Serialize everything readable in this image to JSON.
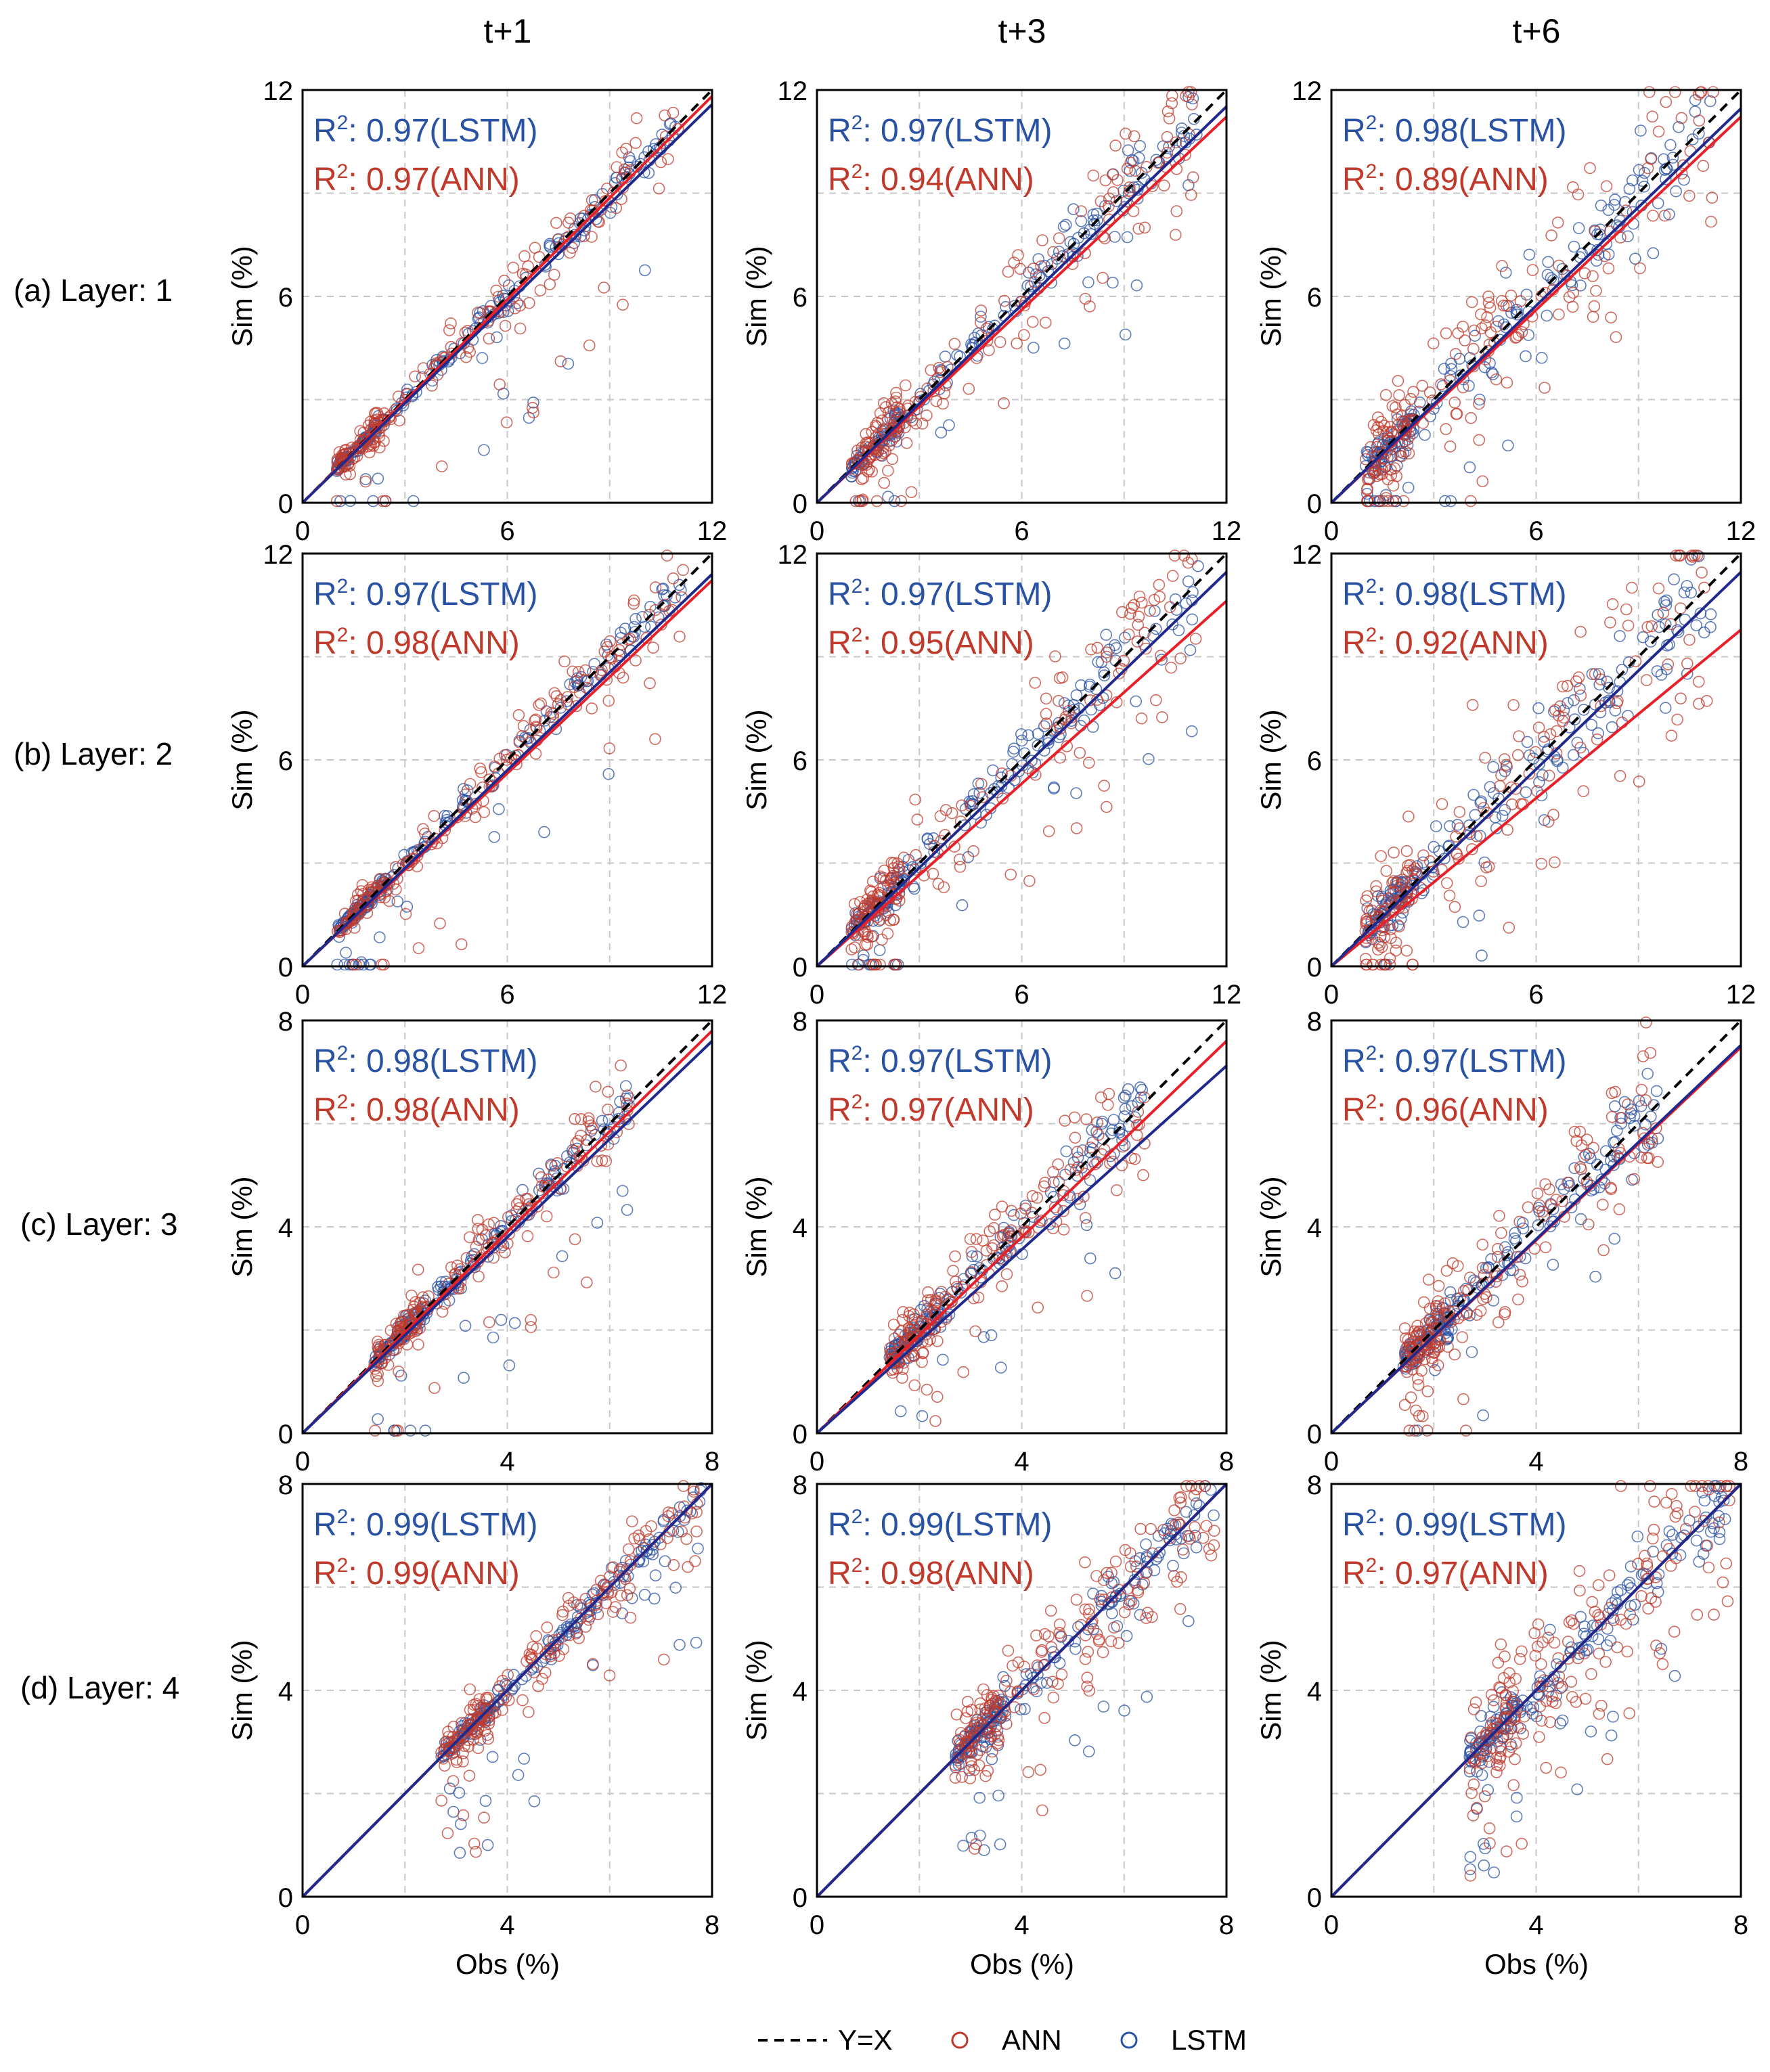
{
  "figure": {
    "columns": [
      "t+1",
      "t+3",
      "t+6"
    ],
    "rows": [
      "(a) Layer: 1",
      "(b) Layer: 2",
      "(c) Layer: 3",
      "(d) Layer: 4"
    ],
    "xlabel": "Obs (%)",
    "ylabel": "Sim (%)",
    "legend": {
      "line": "Y=X",
      "ann": "ANN",
      "lstm": "LSTM"
    },
    "colors": {
      "ann": "#c0392b",
      "lstm": "#2952a3",
      "ann_fit": "#e8202a",
      "lstm_fit": "#1f2a8c",
      "identity": "#000000"
    }
  },
  "chart_data": [
    {
      "type": "scatter",
      "row": "(a) Layer: 1",
      "column": "t+1",
      "xlim": [
        0,
        12
      ],
      "ylim": [
        0,
        12
      ],
      "ticks": [
        0,
        6,
        12
      ],
      "series": [
        {
          "name": "LSTM",
          "r2": "0.97",
          "fit_slope": 0.965
        },
        {
          "name": "ANN",
          "r2": "0.97",
          "fit_slope": 0.985
        }
      ],
      "identity": "Y=X"
    },
    {
      "type": "scatter",
      "row": "(a) Layer: 1",
      "column": "t+3",
      "xlim": [
        0,
        12
      ],
      "ylim": [
        0,
        12
      ],
      "ticks": [
        0,
        6,
        12
      ],
      "series": [
        {
          "name": "LSTM",
          "r2": "0.97",
          "fit_slope": 0.96
        },
        {
          "name": "ANN",
          "r2": "0.94",
          "fit_slope": 0.935
        }
      ],
      "identity": "Y=X"
    },
    {
      "type": "scatter",
      "row": "(a) Layer: 1",
      "column": "t+6",
      "xlim": [
        0,
        12
      ],
      "ylim": [
        0,
        12
      ],
      "ticks": [
        0,
        6,
        12
      ],
      "series": [
        {
          "name": "LSTM",
          "r2": "0.98",
          "fit_slope": 0.955
        },
        {
          "name": "ANN",
          "r2": "0.89",
          "fit_slope": 0.935
        }
      ],
      "identity": "Y=X"
    },
    {
      "type": "scatter",
      "row": "(b) Layer: 2",
      "column": "t+1",
      "xlim": [
        0,
        12
      ],
      "ylim": [
        0,
        12
      ],
      "ticks": [
        0,
        6,
        12
      ],
      "series": [
        {
          "name": "LSTM",
          "r2": "0.97",
          "fit_slope": 0.95
        },
        {
          "name": "ANN",
          "r2": "0.98",
          "fit_slope": 0.935
        }
      ],
      "identity": "Y=X"
    },
    {
      "type": "scatter",
      "row": "(b) Layer: 2",
      "column": "t+3",
      "xlim": [
        0,
        12
      ],
      "ylim": [
        0,
        12
      ],
      "ticks": [
        0,
        6,
        12
      ],
      "series": [
        {
          "name": "LSTM",
          "r2": "0.97",
          "fit_slope": 0.955
        },
        {
          "name": "ANN",
          "r2": "0.95",
          "fit_slope": 0.885
        }
      ],
      "identity": "Y=X"
    },
    {
      "type": "scatter",
      "row": "(b) Layer: 2",
      "column": "t+6",
      "xlim": [
        0,
        12
      ],
      "ylim": [
        0,
        12
      ],
      "ticks": [
        0,
        6,
        12
      ],
      "series": [
        {
          "name": "LSTM",
          "r2": "0.98",
          "fit_slope": 0.955
        },
        {
          "name": "ANN",
          "r2": "0.92",
          "fit_slope": 0.815
        }
      ],
      "identity": "Y=X"
    },
    {
      "type": "scatter",
      "row": "(c) Layer: 3",
      "column": "t+1",
      "xlim": [
        0,
        8
      ],
      "ylim": [
        0,
        8
      ],
      "ticks": [
        0,
        4,
        8
      ],
      "series": [
        {
          "name": "LSTM",
          "r2": "0.98",
          "fit_slope": 0.95
        },
        {
          "name": "ANN",
          "r2": "0.98",
          "fit_slope": 0.975
        }
      ],
      "identity": "Y=X"
    },
    {
      "type": "scatter",
      "row": "(c) Layer: 3",
      "column": "t+3",
      "xlim": [
        0,
        8
      ],
      "ylim": [
        0,
        8
      ],
      "ticks": [
        0,
        4,
        8
      ],
      "series": [
        {
          "name": "LSTM",
          "r2": "0.97",
          "fit_slope": 0.89
        },
        {
          "name": "ANN",
          "r2": "0.97",
          "fit_slope": 0.95
        }
      ],
      "identity": "Y=X"
    },
    {
      "type": "scatter",
      "row": "(c) Layer: 3",
      "column": "t+6",
      "xlim": [
        0,
        8
      ],
      "ylim": [
        0,
        8
      ],
      "ticks": [
        0,
        4,
        8
      ],
      "series": [
        {
          "name": "LSTM",
          "r2": "0.97",
          "fit_slope": 0.94
        },
        {
          "name": "ANN",
          "r2": "0.96",
          "fit_slope": 0.935
        }
      ],
      "identity": "Y=X"
    },
    {
      "type": "scatter",
      "row": "(d) Layer: 4",
      "column": "t+1",
      "xlim": [
        0,
        8
      ],
      "ylim": [
        0,
        8
      ],
      "ticks": [
        0,
        4,
        8
      ],
      "series": [
        {
          "name": "LSTM",
          "r2": "0.99",
          "fit_slope": 1.0
        },
        {
          "name": "ANN",
          "r2": "0.99",
          "fit_slope": 1.0
        }
      ],
      "identity": "Y=X"
    },
    {
      "type": "scatter",
      "row": "(d) Layer: 4",
      "column": "t+3",
      "xlim": [
        0,
        8
      ],
      "ylim": [
        0,
        8
      ],
      "ticks": [
        0,
        4,
        8
      ],
      "series": [
        {
          "name": "LSTM",
          "r2": "0.99",
          "fit_slope": 1.0
        },
        {
          "name": "ANN",
          "r2": "0.98",
          "fit_slope": 1.0
        }
      ],
      "identity": "Y=X"
    },
    {
      "type": "scatter",
      "row": "(d) Layer: 4",
      "column": "t+6",
      "xlim": [
        0,
        8
      ],
      "ylim": [
        0,
        8
      ],
      "ticks": [
        0,
        4,
        8
      ],
      "series": [
        {
          "name": "LSTM",
          "r2": "0.99",
          "fit_slope": 1.0
        },
        {
          "name": "ANN",
          "r2": "0.97",
          "fit_slope": 1.0
        }
      ],
      "identity": "Y=X"
    }
  ]
}
